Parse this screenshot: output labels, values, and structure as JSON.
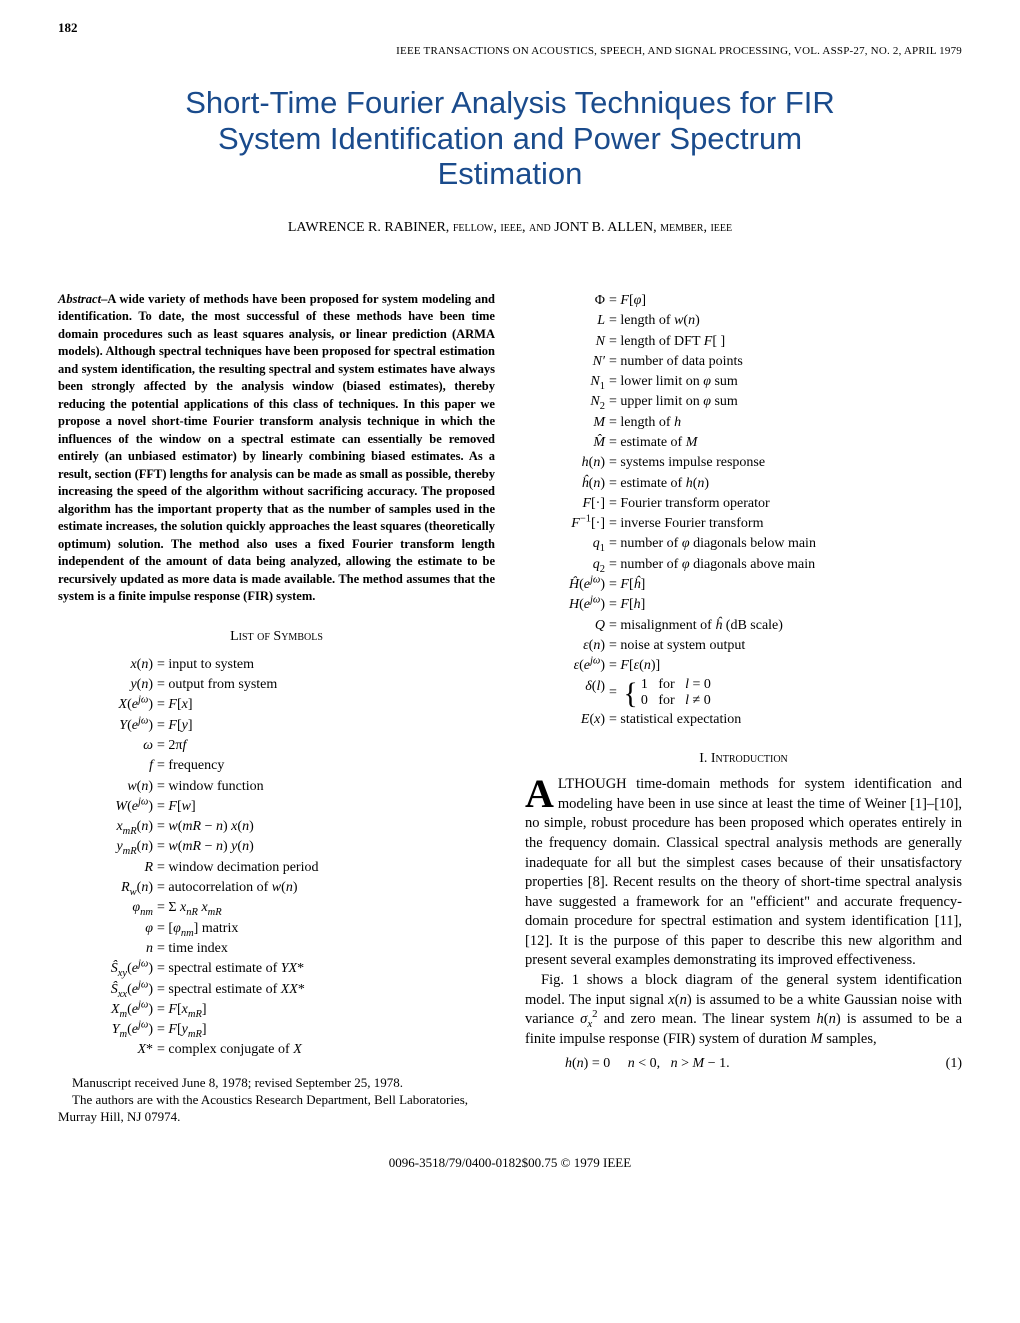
{
  "page_number": "182",
  "journal_header": "IEEE TRANSACTIONS ON ACOUSTICS, SPEECH, AND SIGNAL PROCESSING, VOL. ASSP-27, NO. 2, APRIL 1979",
  "title_line1": "Short-Time Fourier Analysis Techniques for FIR",
  "title_line2": "System Identification and Power Spectrum",
  "title_line3": "Estimation",
  "authors_text": "LAWRENCE R. RABINER, ",
  "authors_role1": "fellow, ieee, ",
  "authors_and": "and",
  "authors_text2": " JONT B. ALLEN, ",
  "authors_role2": "member, ieee",
  "abstract_lead": "Abstract",
  "abstract_body": "–A wide variety of methods have been proposed for system modeling and identification. To date, the most successful of these methods have been time domain procedures such as least squares analysis, or linear prediction (ARMA models). Although spectral techniques have been proposed for spectral estimation and system identification, the resulting spectral and system estimates have always been strongly affected by the analysis window (biased estimates), thereby reducing the potential applications of this class of techniques. In this paper we propose a novel short-time Fourier transform analysis technique in which the influences of the window on a spectral estimate can essentially be removed entirely (an unbiased estimator) by linearly combining biased estimates. As a result, section (FFT) lengths for analysis can be made as small as possible, thereby increasing the speed of the algorithm without sacrificing accuracy. The proposed algorithm has the important property that as the number of samples used in the estimate increases, the solution quickly approaches the least squares (theoretically optimum) solution. The method also uses a fixed Fourier transform length independent of the amount of data being analyzed, allowing the estimate to be recursively updated as more data is made available. The method assumes that the system is a finite impulse response (FIR) system.",
  "list_symbols_heading": "List of Symbols",
  "symbols_left": [
    {
      "l": "x(n)",
      "r": "= input to system"
    },
    {
      "l": "y(n)",
      "r": "= output from system"
    },
    {
      "l": "X(e^{jω})",
      "r": "= F[x]"
    },
    {
      "l": "Y(e^{jω})",
      "r": "= F[y]"
    },
    {
      "l": "ω",
      "r": "= 2πf"
    },
    {
      "l": "f",
      "r": "= frequency"
    },
    {
      "l": "w(n)",
      "r": "= window function"
    },
    {
      "l": "W(e^{jω})",
      "r": "= F[w]"
    },
    {
      "l": "x_{mR}(n)",
      "r": "= w(mR − n) x(n)"
    },
    {
      "l": "y_{mR}(n)",
      "r": "= w(mR − n) y(n)"
    },
    {
      "l": "R",
      "r": "= window decimation period"
    },
    {
      "l": "R_w(n)",
      "r": "= autocorrelation of w(n)"
    },
    {
      "l": "φ_{nm}",
      "r": "= Σ x_{nR} x_{mR}"
    },
    {
      "l": "φ",
      "r": "= [φ_{nm}] matrix"
    },
    {
      "l": "n",
      "r": "= time index"
    },
    {
      "l": "Ŝ_{xy}(e^{jω})",
      "r": "= spectral estimate of YX*"
    },
    {
      "l": "Ŝ_{xx}(e^{jω})",
      "r": "= spectral estimate of XX*"
    },
    {
      "l": "X_m(e^{jω})",
      "r": "= F[x_{mR}]"
    },
    {
      "l": "Y_m(e^{jω})",
      "r": "= F[y_{mR}]"
    },
    {
      "l": "X*",
      "r": "= complex conjugate of X"
    }
  ],
  "symbols_right": [
    {
      "l": "Φ",
      "r": "= F[φ]"
    },
    {
      "l": "L",
      "r": "= length of w(n)"
    },
    {
      "l": "N",
      "r": "= length of DFT F[ ]"
    },
    {
      "l": "N′",
      "r": "= number of data points"
    },
    {
      "l": "N₁",
      "r": "= lower limit on φ sum"
    },
    {
      "l": "N₂",
      "r": "= upper limit on φ sum"
    },
    {
      "l": "M",
      "r": "= length of h"
    },
    {
      "l": "M̂",
      "r": "= estimate of M"
    },
    {
      "l": "h(n)",
      "r": "= systems impulse response"
    },
    {
      "l": "ĥ(n)",
      "r": "= estimate of h(n)"
    },
    {
      "l": "F[·]",
      "r": "= Fourier transform operator"
    },
    {
      "l": "F⁻¹[·]",
      "r": "= inverse Fourier transform"
    },
    {
      "l": "q₁",
      "r": "= number of φ diagonals below main"
    },
    {
      "l": "q₂",
      "r": "= number of φ diagonals above main"
    },
    {
      "l": "Ĥ(e^{jω})",
      "r": "= F[ĥ]"
    },
    {
      "l": "H(e^{jω})",
      "r": "= F[h]"
    },
    {
      "l": "Q",
      "r": "= misalignment of ĥ (dB scale)"
    },
    {
      "l": "ε(n)",
      "r": "= noise at system output"
    },
    {
      "l": "ε(e^{jω})",
      "r": "= F[ε(n)]"
    }
  ],
  "delta_left": "δ(l) =",
  "delta_case1": "1   for   l = 0",
  "delta_case2": "0   for   l ≠ 0",
  "sym_Ex_l": "E(x)",
  "sym_Ex_r": "= statistical expectation",
  "intro_heading": "I. Introduction",
  "intro_dropcap": "A",
  "intro_para1": "LTHOUGH time-domain methods for system identification and modeling have been in use since at least the time of Weiner [1]–[10], no simple, robust procedure has been proposed which operates entirely in the frequency domain. Classical spectral analysis methods are generally inadequate for all but the simplest cases because of their unsatisfactory properties [8]. Recent results on the theory of short-time spectral analysis have suggested a framework for an \"efficient\" and accurate frequency-domain procedure for spectral estimation and system identification [11], [12]. It is the purpose of this paper to describe this new algorithm and present several examples demonstrating its improved effectiveness.",
  "intro_para2": "Fig. 1 shows a block diagram of the general system identification model. The input signal x(n) is assumed to be a white Gaussian noise with variance σ_x² and zero mean. The linear system h(n) is assumed to be a finite impulse response (FIR) system of duration M samples,",
  "eq1": "h(n) = 0      n < 0,   n > M − 1.",
  "eq1_num": "(1)",
  "manuscript_l1": "Manuscript received June 8, 1978; revised September 25, 1978.",
  "manuscript_l2": "The authors are with the Acoustics Research Department, Bell Laboratories, Murray Hill, NJ 07974.",
  "footer": "0096-3518/79/0400-0182$00.75 © 1979 IEEE"
}
